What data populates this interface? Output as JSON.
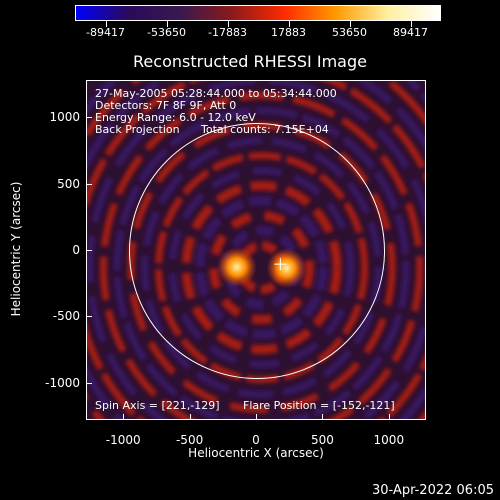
{
  "colorbar": {
    "ticks": [
      "-89417",
      "-53650",
      "-17883",
      "17883",
      "53650",
      "89417"
    ],
    "colors": [
      "#0000ff",
      "#2a0a5a",
      "#3a1850",
      "#8a1a1a",
      "#ff2a00",
      "#ff9a00",
      "#fff0a0",
      "#ffffff"
    ]
  },
  "title": "Reconstructed RHESSI Image",
  "annotations": {
    "time_range": "27-May-2005 05:28:44.000 to 05:34:44.000",
    "detectors": "Detectors: 7F 8F 9F, Att 0",
    "energy": "Energy Range: 6.0 - 12.0 keV",
    "method": "Back Projection",
    "counts": "Total counts: 7.15E+04",
    "spin_axis": "Spin Axis = [221,-129]",
    "flare_position": "Flare Position = [-152,-121]"
  },
  "axes": {
    "xlabel": "Heliocentric X (arcsec)",
    "ylabel": "Heliocentric Y (arcsec)",
    "xticks": [
      "-1000",
      "-500",
      "0",
      "500",
      "1000"
    ],
    "yticks": [
      "1000",
      "500",
      "0",
      "-500",
      "-1000"
    ],
    "x_range": [
      -1280,
      1280
    ],
    "y_range": [
      -1280,
      1280
    ]
  },
  "map": {
    "solar_limb_radius_arcsec": 960,
    "sources": [
      {
        "name": "primary-source",
        "x": -152,
        "y": -121
      },
      {
        "name": "spin-axis-source",
        "x": 221,
        "y": -129
      }
    ],
    "colors": {
      "background": "#2d1030",
      "ring": "#b21e12",
      "ring_bright": "#e03a10",
      "trough": "#3b1a6b",
      "core": "#fff3a0",
      "mid": "#ff8a00",
      "limb": "#ffffff"
    }
  },
  "timestamp": "30-Apr-2022 06:05"
}
